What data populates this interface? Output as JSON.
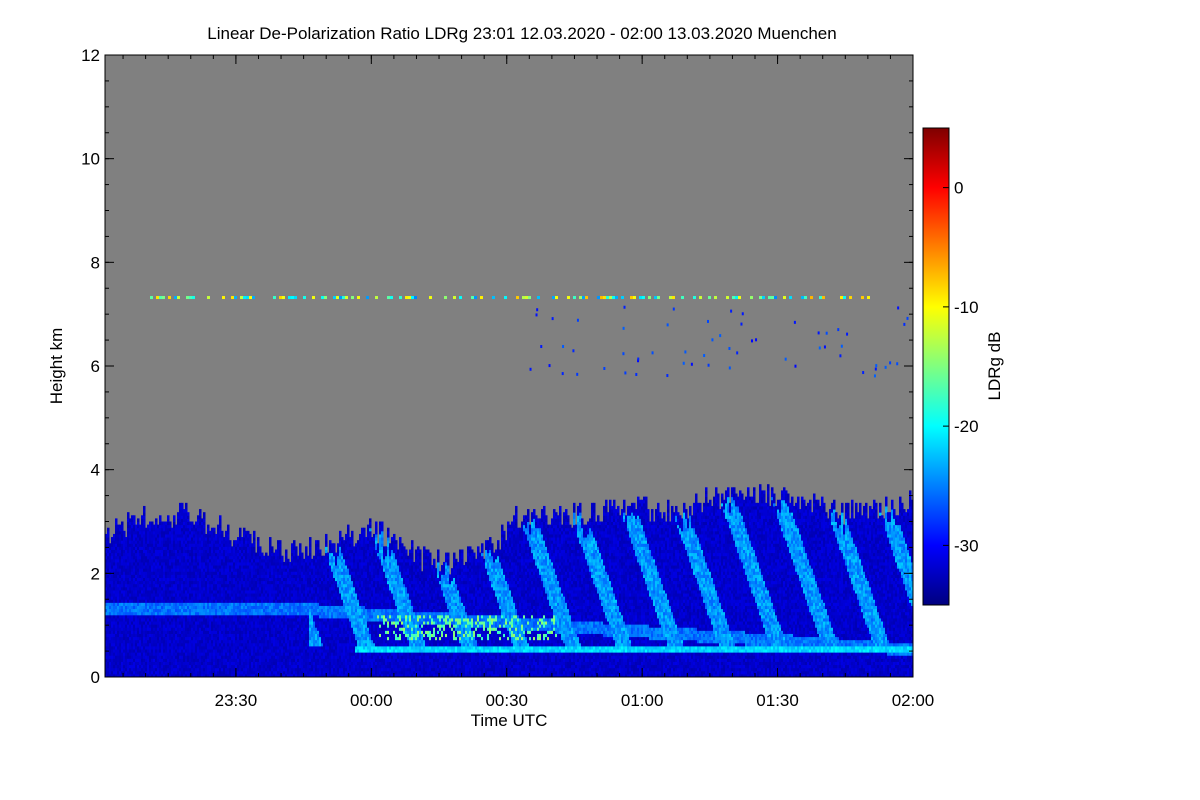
{
  "chart_data": {
    "type": "heatmap",
    "title": "Linear De-Polarization Ratio LDRg   23:01 12.03.2020 - 02:00 13.03.2020 Muenchen",
    "xlabel": "Time UTC",
    "ylabel": "Height km",
    "x_range": [
      "23:01",
      "02:00"
    ],
    "x_ticks": [
      {
        "label": "23:30",
        "minutes": 29
      },
      {
        "label": "00:00",
        "minutes": 59
      },
      {
        "label": "00:30",
        "minutes": 89
      },
      {
        "label": "01:00",
        "minutes": 119
      },
      {
        "label": "01:30",
        "minutes": 149
      },
      {
        "label": "02:00",
        "minutes": 179
      }
    ],
    "x_minutes_total": 179,
    "ylim": [
      0,
      12
    ],
    "y_ticks": [
      0,
      2,
      4,
      6,
      8,
      10,
      12
    ],
    "colorbar": {
      "label": "LDRg dB",
      "range": [
        -35,
        5
      ],
      "ticks": [
        0,
        -10,
        -20,
        -30
      ],
      "colormap": "jet"
    },
    "background_color": "#808080",
    "grid": false,
    "features": [
      {
        "feature": "boundary layer cloud / aerosol top",
        "height_km_start": 2.8,
        "height_km_min": 2.2,
        "height_km_end": 3.5
      },
      {
        "feature": "elevated layer",
        "height_km": 1.3
      },
      {
        "feature": "lower layer",
        "height_km": 0.5
      },
      {
        "feature": "thin cirrus",
        "height_km": 7.3
      }
    ]
  }
}
